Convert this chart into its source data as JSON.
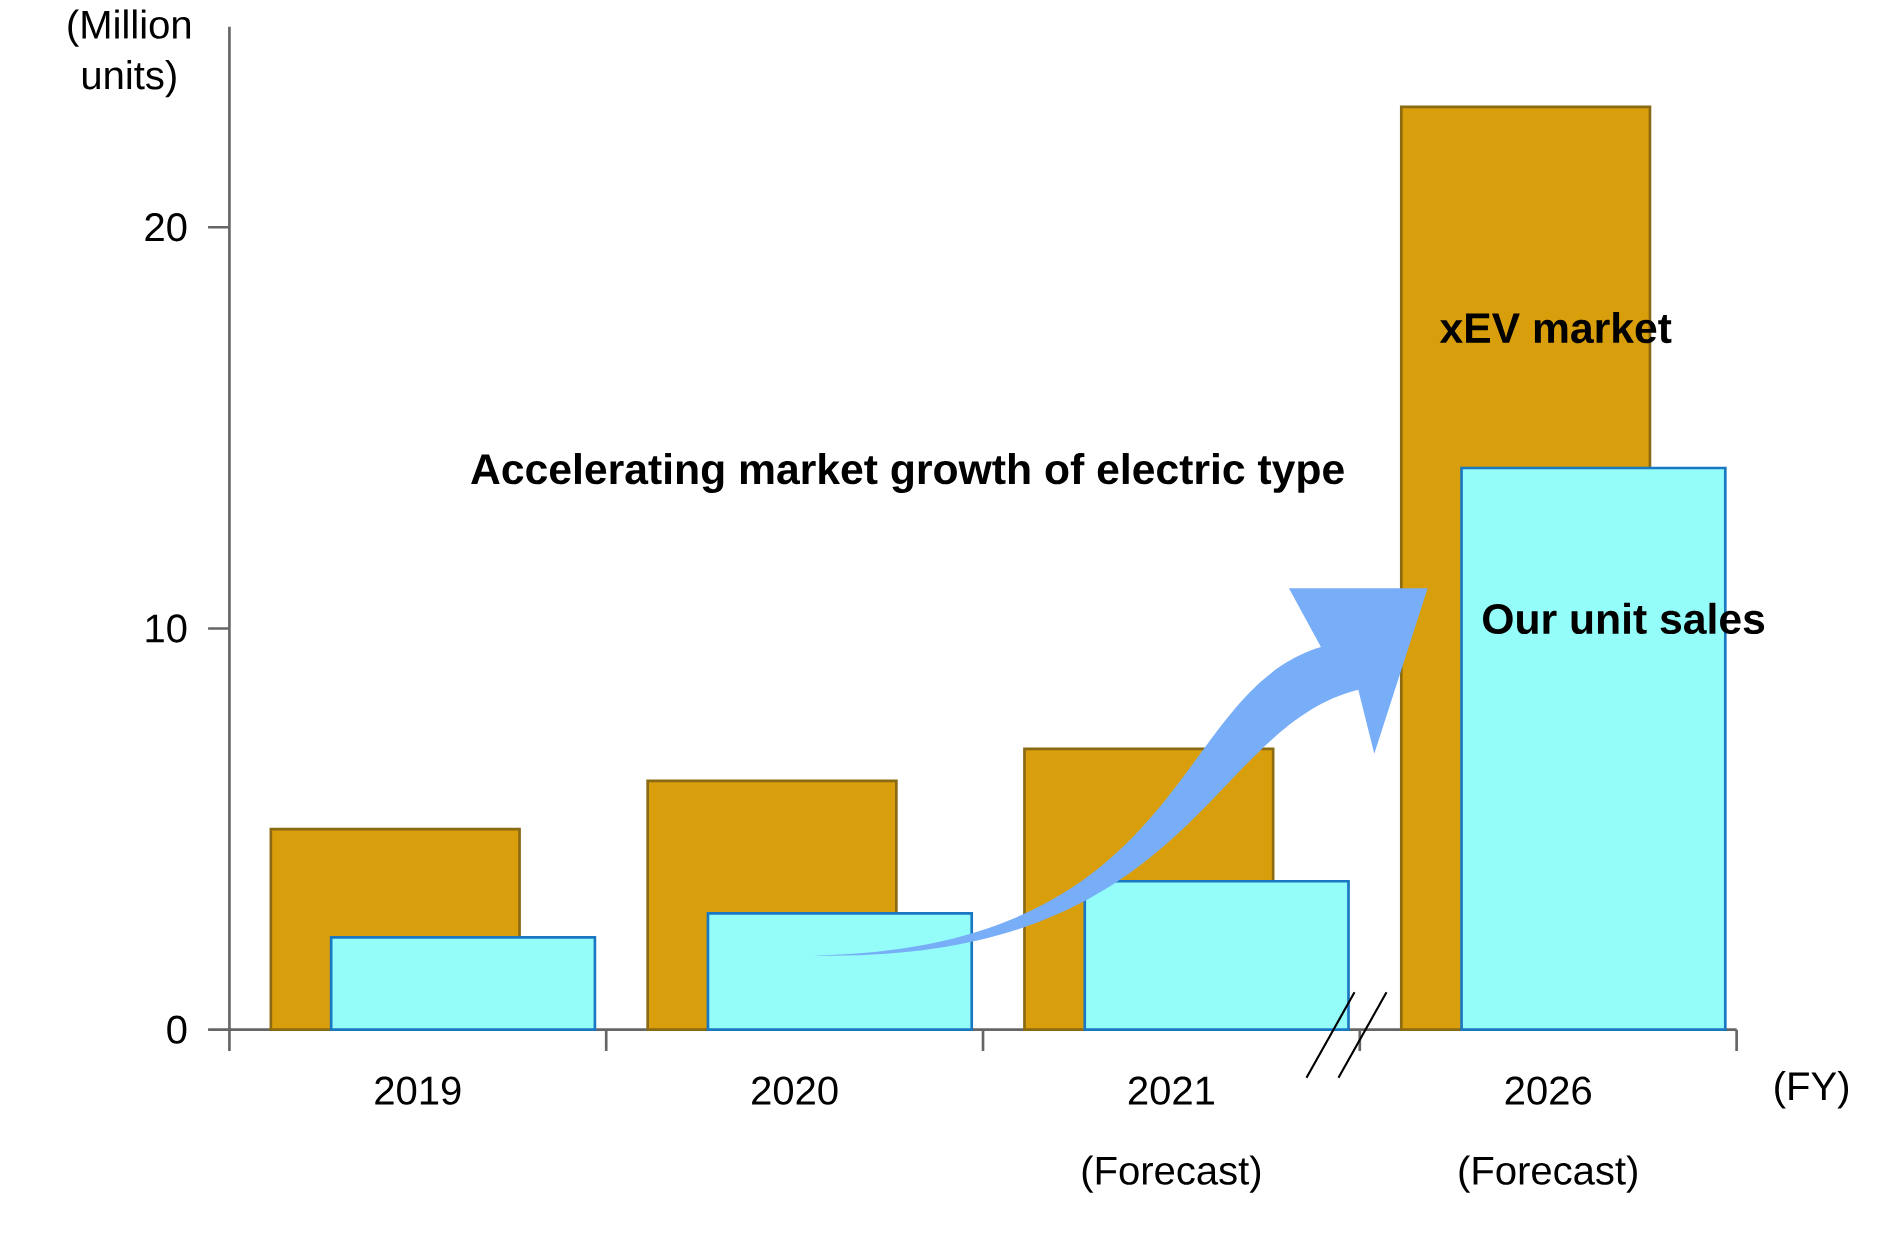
{
  "chart_data": {
    "type": "bar",
    "xlabel": "(FY)",
    "ylabel": "(Million units)",
    "categories": [
      "2019",
      "2020",
      "2021 (Forecast)",
      "2026 (Forecast)"
    ],
    "series": [
      {
        "name": "xEV market",
        "color": "#d99e0b",
        "values": [
          5.0,
          6.2,
          7.0,
          23.0
        ]
      },
      {
        "name": "Our unit sales",
        "color": "#94fcf9",
        "values": [
          2.3,
          2.9,
          3.7,
          14.0
        ]
      }
    ],
    "ylim": [
      0,
      25
    ],
    "yticks": [
      0,
      10,
      20
    ],
    "annotations": [
      "Accelerating market growth of electric type"
    ],
    "grid": false
  }
}
